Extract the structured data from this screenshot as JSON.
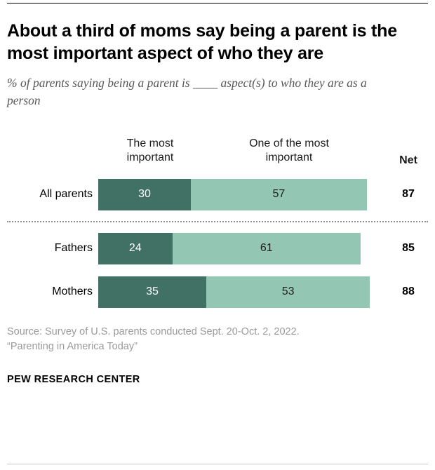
{
  "header": {
    "title": "About a third of moms say being a parent is the most important aspect of who they are",
    "subtitle": "% of parents saying being a parent is ____ aspect(s) to who they are as a person"
  },
  "chart_data": {
    "type": "bar",
    "orientation": "horizontal",
    "stacked": true,
    "categories": [
      "All parents",
      "Fathers",
      "Mothers"
    ],
    "series": [
      {
        "name": "The most important",
        "color": "#407164",
        "values": [
          30,
          24,
          35
        ]
      },
      {
        "name": "One of the most important",
        "color": "#94c6b4",
        "values": [
          57,
          61,
          53
        ]
      }
    ],
    "net_label": "Net",
    "net_values": [
      87,
      85,
      88
    ],
    "xlim": [
      0,
      100
    ],
    "value_labels_shown": true,
    "colors": {
      "dark_segment": "#407164",
      "light_segment": "#94c6b4"
    }
  },
  "footer": {
    "source_line1": "Source: Survey of U.S. parents conducted Sept. 20-Oct. 2, 2022.",
    "source_line2": "“Parenting in America Today”",
    "brand": "PEW RESEARCH CENTER"
  }
}
